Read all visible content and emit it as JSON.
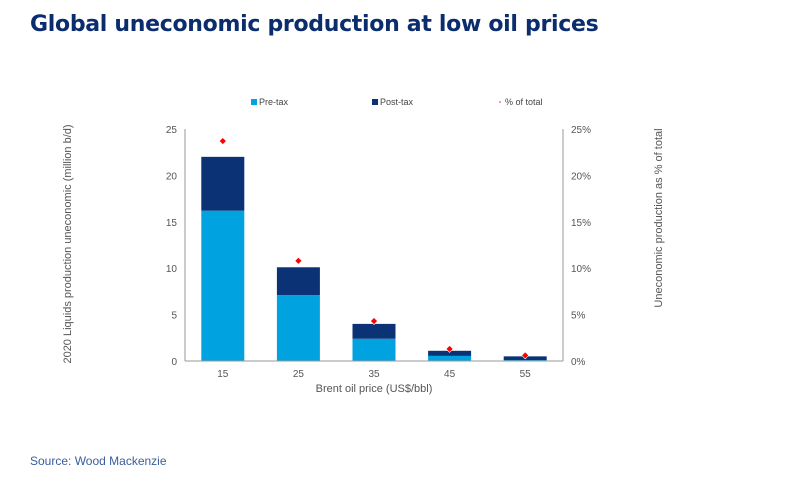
{
  "title": "Global uneconomic production at low oil prices",
  "source": "Source: Wood Mackenzie",
  "colors": {
    "pre_tax": "#00a3e0",
    "post_tax": "#0b3274",
    "pct": "#ff0000",
    "title": "#0b2d6e",
    "axis": "#999999"
  },
  "chart_data": {
    "type": "bar",
    "stacked": true,
    "title": "Global uneconomic production at low oil prices",
    "xlabel": "Brent oil price (US$/bbl)",
    "ylabel": "2020 Liquids production uneconomic (million b/d)",
    "y2label": "Uneconomic production as % of total",
    "categories": [
      "15",
      "25",
      "35",
      "45",
      "55"
    ],
    "series": [
      {
        "name": "Pre-tax",
        "type": "bar",
        "axis": "left",
        "values": [
          16.2,
          7.1,
          2.4,
          0.55,
          0.1
        ]
      },
      {
        "name": "Post-tax",
        "type": "bar",
        "axis": "left",
        "values": [
          5.8,
          3.0,
          1.6,
          0.55,
          0.4
        ]
      },
      {
        "name": "% of total",
        "type": "scatter",
        "axis": "right",
        "values": [
          23.7,
          10.8,
          4.3,
          1.3,
          0.6
        ]
      }
    ],
    "ylim": [
      0,
      25
    ],
    "yticks": [
      "0",
      "5",
      "10",
      "15",
      "20",
      "25"
    ],
    "y2lim": [
      0,
      25
    ],
    "y2ticks": [
      "0%",
      "5%",
      "10%",
      "15%",
      "20%",
      "25%"
    ],
    "legend": [
      "Pre-tax",
      "Post-tax",
      "% of total"
    ],
    "legend_position": "top",
    "grid": false
  }
}
